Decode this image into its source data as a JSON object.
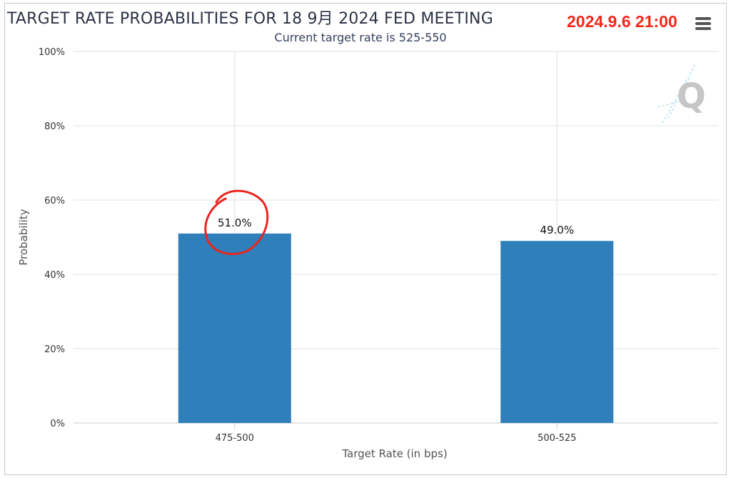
{
  "header": {
    "title": "TARGET RATE PROBABILITIES FOR 18 9月 2024 FED MEETING",
    "subtitle": "Current target rate is 525-550",
    "timestamp": "2024.9.6 21:00"
  },
  "colors": {
    "bar": "#2f7fba",
    "timestamp": "#f2281c",
    "annotation": "#e8261f",
    "grid": "#e0e0e0",
    "watermark": "#bdbdbd"
  },
  "icons": {
    "menu": "hamburger-menu-icon",
    "watermark": "q-logo-watermark"
  },
  "annotation": {
    "type": "hand-drawn-circle",
    "target": "51.0%"
  },
  "chart_data": {
    "type": "bar",
    "categories": [
      "475-500",
      "500-525"
    ],
    "values": [
      51.0,
      49.0
    ],
    "data_labels": [
      "51.0%",
      "49.0%"
    ],
    "xlabel": "Target Rate (in bps)",
    "ylabel": "Probability",
    "ylim": [
      0,
      100
    ],
    "yticks": [
      0,
      20,
      40,
      60,
      80,
      100
    ],
    "ytick_labels": [
      "0%",
      "20%",
      "40%",
      "60%",
      "80%",
      "100%"
    ],
    "grid": true,
    "legend": "none"
  }
}
